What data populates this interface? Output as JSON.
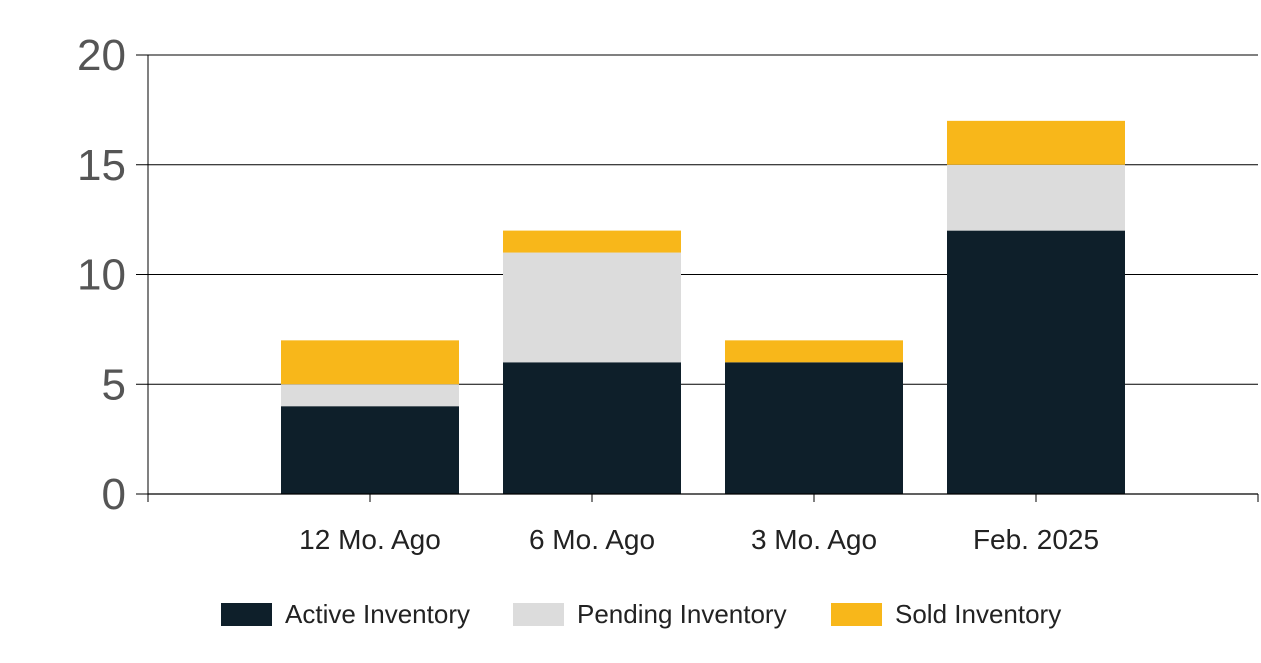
{
  "chart_data": {
    "type": "bar",
    "stacked": true,
    "categories": [
      "12 Mo. Ago",
      "6 Mo. Ago",
      "3 Mo. Ago",
      "Feb. 2025"
    ],
    "series": [
      {
        "name": "Active Inventory",
        "values": [
          4,
          6,
          6,
          12
        ],
        "color": "#0e1f2a"
      },
      {
        "name": "Pending Inventory",
        "values": [
          1,
          5,
          0,
          3
        ],
        "color": "#dcdcdc"
      },
      {
        "name": "Sold Inventory",
        "values": [
          2,
          1,
          1,
          2
        ],
        "color": "#f8b71a"
      }
    ],
    "y_ticks": [
      "0",
      "5",
      "10",
      "15",
      "20"
    ],
    "ylim": [
      0,
      20
    ],
    "grid": true,
    "legend_position": "bottom",
    "title": "",
    "xlabel": "",
    "ylabel": ""
  }
}
